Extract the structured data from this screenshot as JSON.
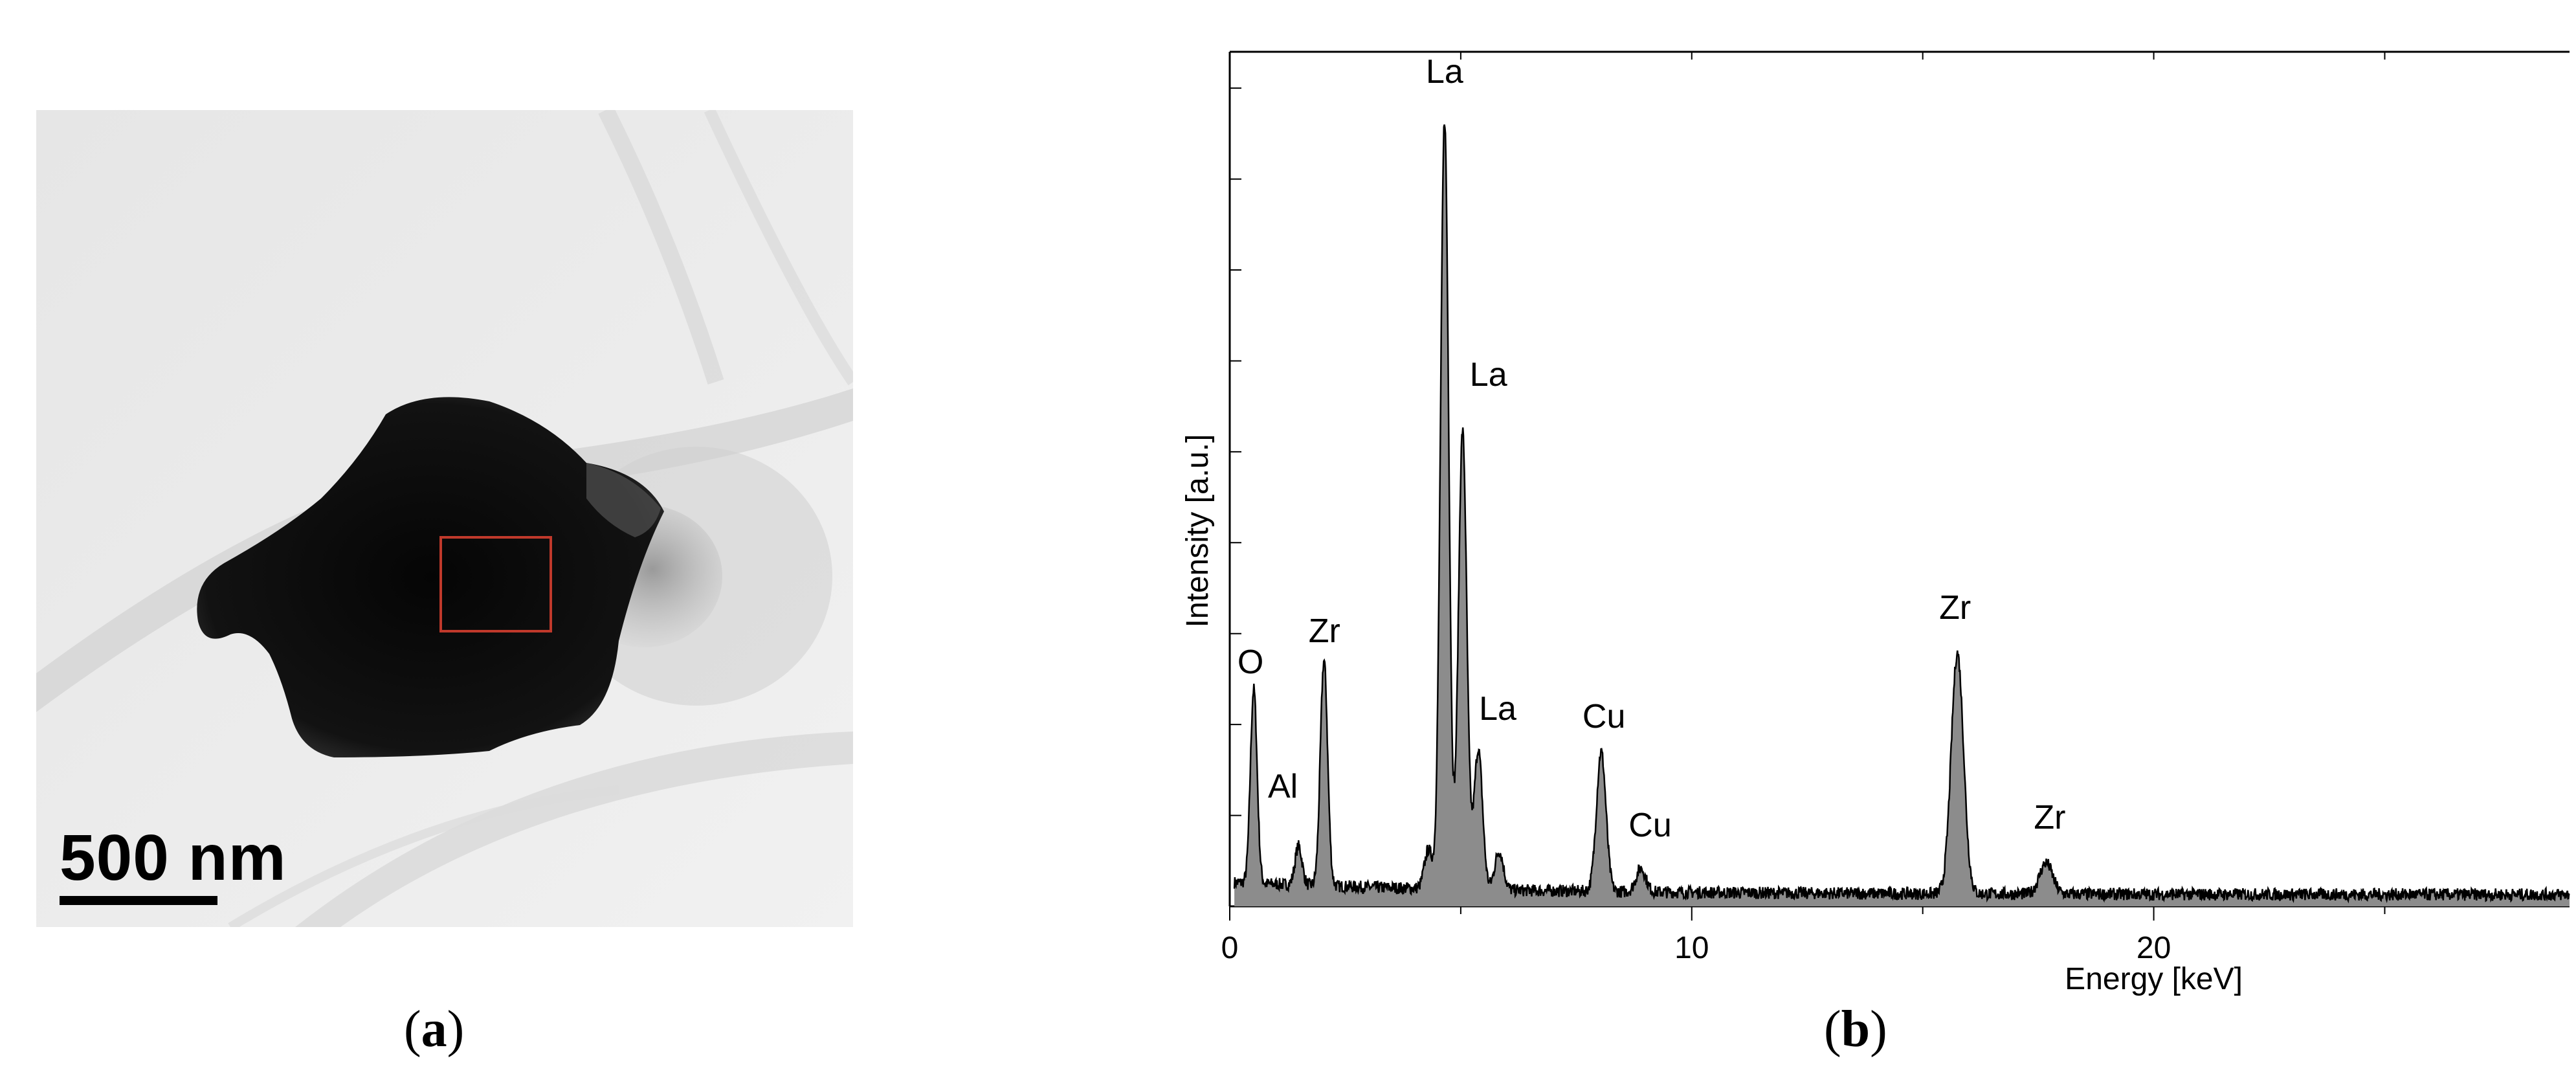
{
  "panel_a": {
    "scale_bar_label": "500 nm",
    "caption_letter": "a"
  },
  "panel_b": {
    "caption_letter": "b"
  },
  "colors": {
    "peak_fill": "#8c8c8c",
    "roi_box": "#c0392b",
    "axis": "#000000"
  },
  "chart_data": {
    "type": "area",
    "xlabel": "Energy [keV]",
    "ylabel": "Intensity [a.u.]",
    "xlim": [
      0,
      29
    ],
    "ylim": [
      0,
      100
    ],
    "x_ticks": [
      0,
      10,
      20
    ],
    "y_tick_labels_shown": false,
    "grid": false,
    "baseline": 1.5,
    "peaks": [
      {
        "element": "O",
        "energy": 0.52,
        "intensity": 26,
        "label_x": 0.45,
        "label_y": 30
      },
      {
        "element": "Al",
        "energy": 1.49,
        "intensity": 6,
        "label_x": 1.15,
        "label_y": 14
      },
      {
        "element": "Zr",
        "energy": 2.04,
        "intensity": 30,
        "label_x": 2.05,
        "label_y": 34
      },
      {
        "element": "La",
        "energy": 4.65,
        "intensity": 100,
        "label_x": 4.65,
        "label_y": 106
      },
      {
        "element": "La",
        "energy": 5.04,
        "intensity": 60,
        "label_x": 5.6,
        "label_y": 67
      },
      {
        "element": "La",
        "energy": 5.38,
        "intensity": 19,
        "label_x": 5.8,
        "label_y": 24
      },
      {
        "element": "Cu",
        "energy": 8.04,
        "intensity": 19,
        "label_x": 8.1,
        "label_y": 23
      },
      {
        "element": "Cu",
        "energy": 8.9,
        "intensity": 4,
        "label_x": 9.1,
        "label_y": 9
      },
      {
        "element": "Zr",
        "energy": 15.75,
        "intensity": 32,
        "label_x": 15.7,
        "label_y": 37
      },
      {
        "element": "Zr",
        "energy": 17.67,
        "intensity": 5,
        "label_x": 17.75,
        "label_y": 10
      }
    ],
    "minor_peaks": [
      {
        "energy": 4.3,
        "intensity": 6
      },
      {
        "energy": 5.83,
        "intensity": 6
      }
    ]
  }
}
